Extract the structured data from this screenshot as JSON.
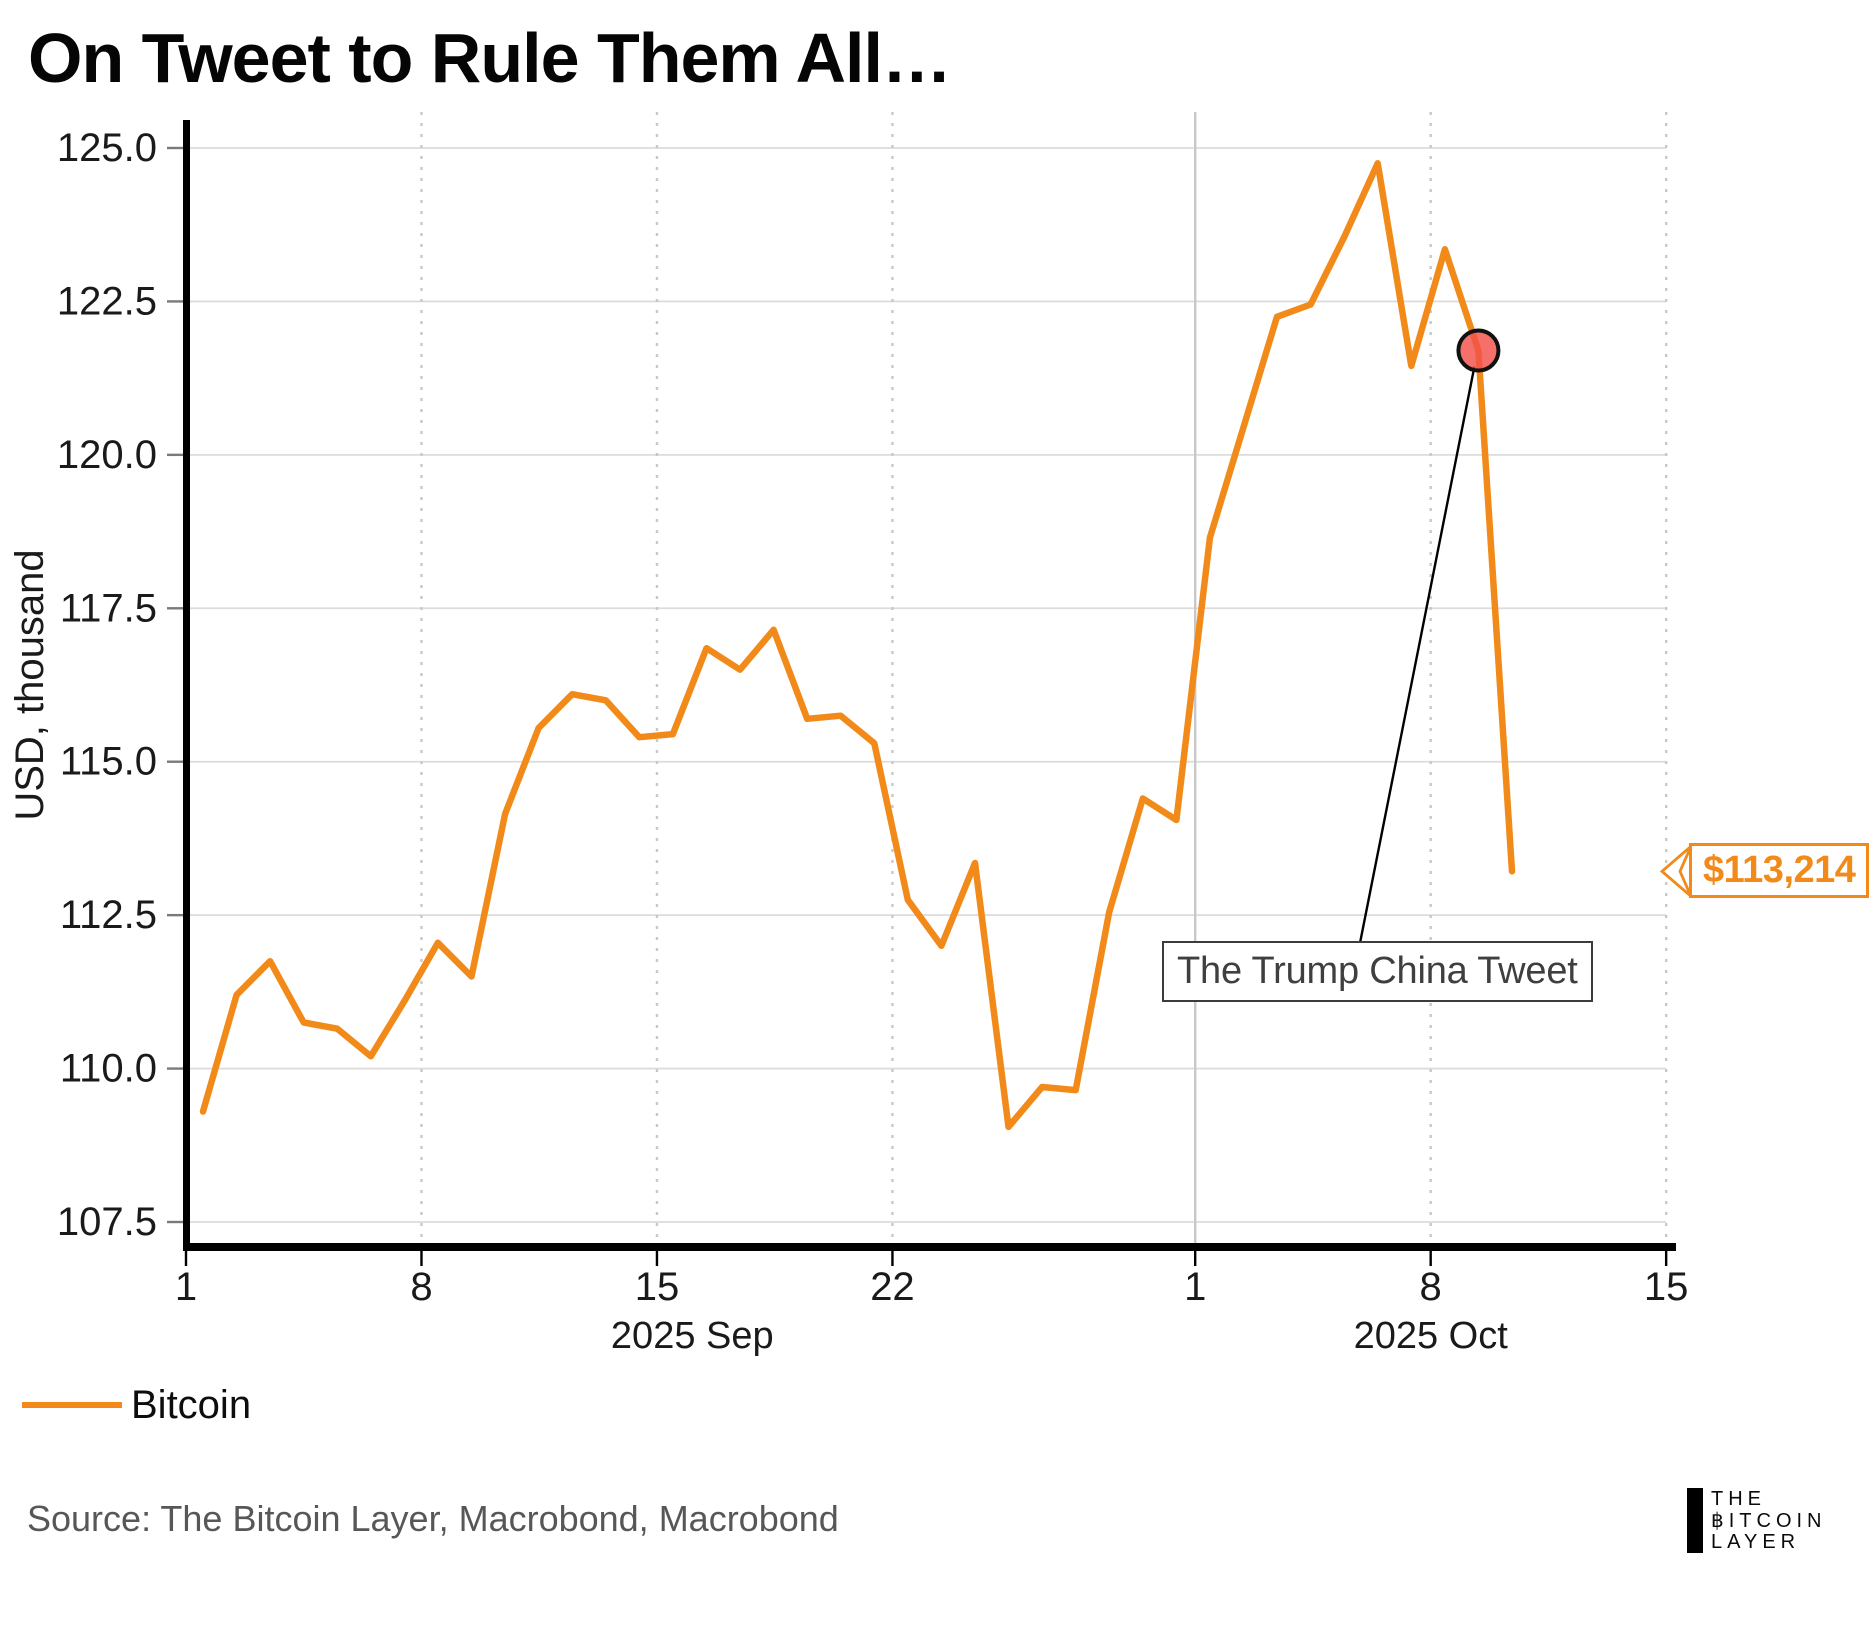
{
  "title": "On Tweet to Rule Them All…",
  "chart_data": {
    "type": "line",
    "title": "On Tweet to Rule Them All…",
    "xlabel": "",
    "ylabel": "USD, thousand",
    "ylim": [
      107.5,
      125.0
    ],
    "yticks": [
      125.0,
      122.5,
      120.0,
      117.5,
      115.0,
      112.5,
      110.0,
      107.5
    ],
    "x_ticks": [
      {
        "label": "1",
        "day": 0
      },
      {
        "label": "8",
        "day": 7
      },
      {
        "label": "15",
        "day": 14
      },
      {
        "label": "22",
        "day": 21
      },
      {
        "label": "1",
        "day": 30
      },
      {
        "label": "8",
        "day": 37
      },
      {
        "label": "15",
        "day": 44
      }
    ],
    "x_month_labels": [
      {
        "label": "2025 Sep",
        "center_day": 15.05
      },
      {
        "label": "2025 Oct",
        "center_day": 37.0
      }
    ],
    "grid": true,
    "legend_position": "bottom-left",
    "series": [
      {
        "name": "Bitcoin",
        "color": "#F28A1A",
        "dates": [
          "2025-09-01",
          "2025-09-02",
          "2025-09-03",
          "2025-09-04",
          "2025-09-05",
          "2025-09-06",
          "2025-09-07",
          "2025-09-08",
          "2025-09-09",
          "2025-09-10",
          "2025-09-11",
          "2025-09-12",
          "2025-09-13",
          "2025-09-14",
          "2025-09-15",
          "2025-09-16",
          "2025-09-17",
          "2025-09-18",
          "2025-09-19",
          "2025-09-20",
          "2025-09-21",
          "2025-09-22",
          "2025-09-23",
          "2025-09-24",
          "2025-09-25",
          "2025-09-26",
          "2025-09-27",
          "2025-09-28",
          "2025-09-29",
          "2025-09-30",
          "2025-10-01",
          "2025-10-02",
          "2025-10-03",
          "2025-10-04",
          "2025-10-05",
          "2025-10-06",
          "2025-10-07",
          "2025-10-08",
          "2025-10-09",
          "2025-10-10"
        ],
        "values": [
          109.3,
          111.2,
          111.75,
          110.75,
          110.65,
          110.2,
          111.1,
          112.05,
          111.5,
          114.15,
          115.55,
          116.1,
          116.0,
          115.4,
          115.45,
          116.85,
          116.5,
          117.15,
          115.7,
          115.75,
          115.3,
          112.75,
          112.0,
          113.35,
          109.05,
          109.7,
          109.65,
          112.55,
          114.4,
          114.05,
          118.65,
          120.45,
          122.25,
          122.45,
          123.55,
          124.75,
          121.45,
          123.35,
          121.7,
          113.214
        ]
      }
    ],
    "marker": {
      "series": "Bitcoin",
      "index": 38,
      "date": "2025-10-09",
      "value": 121.7,
      "color": "#F3504B",
      "annotation": "The Trump China Tweet"
    },
    "end_value_label": {
      "index": 39,
      "text": "$113,214"
    }
  },
  "annotation": {
    "text": "The Trump China Tweet"
  },
  "callout": {
    "text": "$113,214"
  },
  "legend": {
    "items": [
      {
        "label": "Bitcoin",
        "color": "#F28A1A"
      }
    ]
  },
  "source": {
    "text": "Source: The Bitcoin Layer, Macrobond, Macrobond"
  },
  "logo": {
    "line1": "THE",
    "line2": "฿ITCOIN",
    "line3": "LAYER"
  },
  "colors": {
    "line": "#F28A1A",
    "marker_fill": "#F3504B",
    "marker_edge": "#111111",
    "grid": "#dcdcdc",
    "vgrid": "#c8c8c8",
    "axis": "#000000",
    "accent_text": "#F28A1A"
  }
}
